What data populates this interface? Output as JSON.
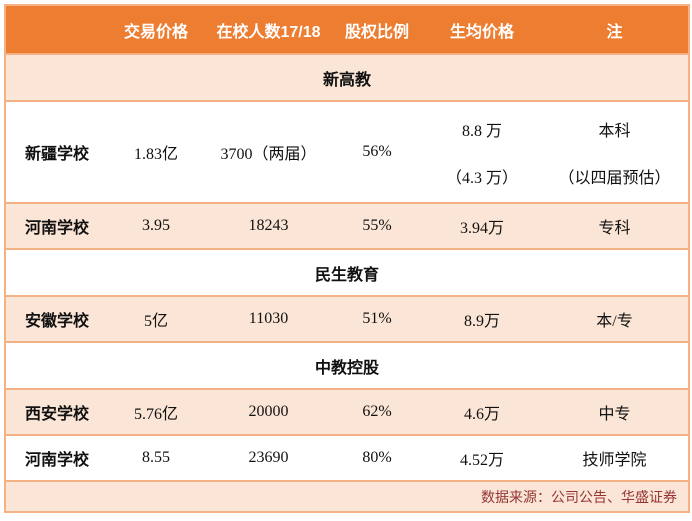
{
  "colors": {
    "header_bg": "#ED7D31",
    "row_alt_bg": "#FBE5D6",
    "border_color": "#F4B183",
    "footer_text": "#943634"
  },
  "chart_data": {
    "type": "table",
    "columns": [
      "",
      "交易价格",
      "在校人数17/18",
      "股权比例",
      "生均价格",
      "注"
    ],
    "groups": [
      {
        "group": "新高教",
        "rows": [
          [
            "新疆学校",
            "1.83亿",
            "3700（两届）",
            "56%",
            [
              "8.8 万",
              "（4.3 万）"
            ],
            [
              "本科",
              "（以四届预估）"
            ]
          ],
          [
            "河南学校",
            "3.95",
            "18243",
            "55%",
            "3.94万",
            "专科"
          ]
        ]
      },
      {
        "group": "民生教育",
        "rows": [
          [
            "安徽学校",
            "5亿",
            "11030",
            "51%",
            "8.9万",
            "本/专"
          ]
        ]
      },
      {
        "group": "中教控股",
        "rows": [
          [
            "西安学校",
            "5.76亿",
            "20000",
            "62%",
            "4.6万",
            "中专"
          ],
          [
            "河南学校",
            "8.55",
            "23690",
            "80%",
            "4.52万",
            "技师学院"
          ]
        ]
      }
    ],
    "source": "数据来源：公司公告、华盛证券",
    "layout": {
      "grid": "horizontal row borders only",
      "legend": "none"
    }
  }
}
